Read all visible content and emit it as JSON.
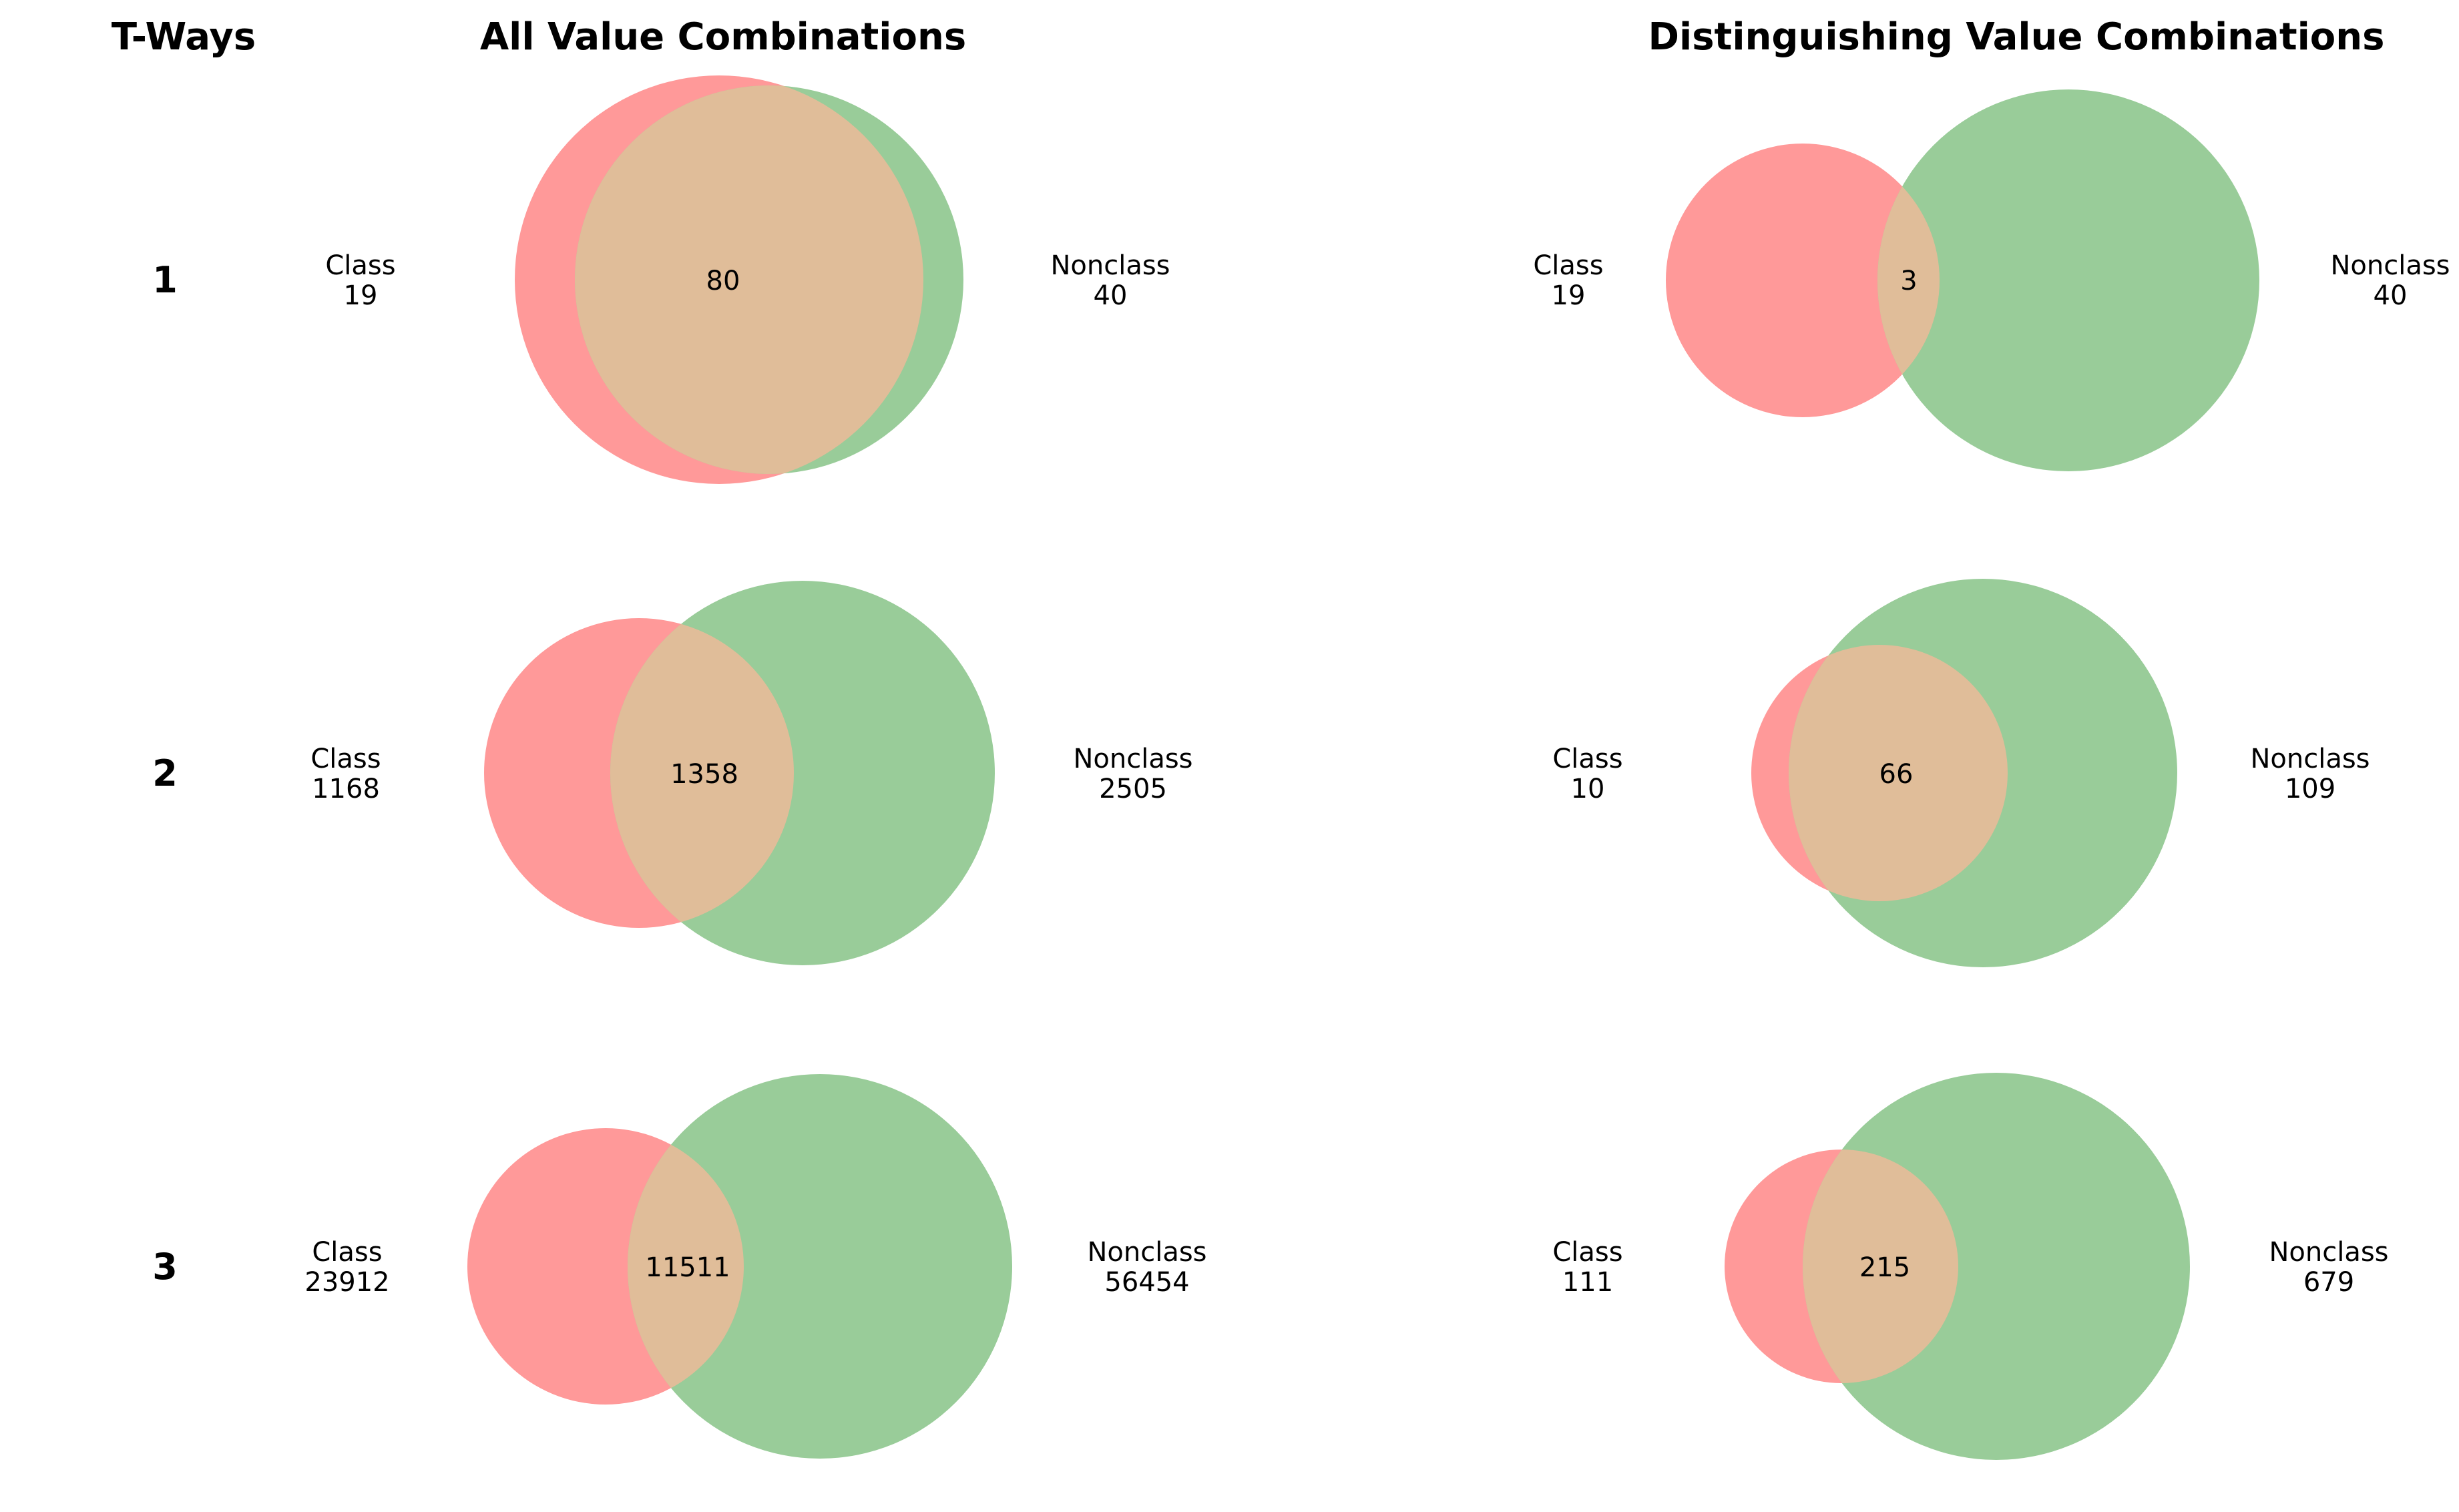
{
  "colors": {
    "class_color": "#ff9999",
    "nonclass_color": "#99cc99",
    "overlap_color": "#e0bd99"
  },
  "headers": {
    "tways": "T-Ways",
    "all": "All Value Combinations",
    "distinguishing": "Distinguishing Value Combinations"
  },
  "chart_data": [
    {
      "type": "venn",
      "title": "All Value Combinations",
      "rows": [
        {
          "tway": "1",
          "class_label": "Class",
          "class_only": 19,
          "nonclass_label": "Nonclass",
          "nonclass_only": 40,
          "intersection": 80
        },
        {
          "tway": "2",
          "class_label": "Class",
          "class_only": 1168,
          "nonclass_label": "Nonclass",
          "nonclass_only": 2505,
          "intersection": 1358
        },
        {
          "tway": "3",
          "class_label": "Class",
          "class_only": 23912,
          "nonclass_label": "Nonclass",
          "nonclass_only": 56454,
          "intersection": 11511
        }
      ]
    },
    {
      "type": "venn",
      "title": "Distinguishing Value Combinations",
      "rows": [
        {
          "tway": "1",
          "class_label": "Class",
          "class_only": 19,
          "nonclass_label": "Nonclass",
          "nonclass_only": 40,
          "intersection": 3
        },
        {
          "tway": "2",
          "class_label": "Class",
          "class_only": 10,
          "nonclass_label": "Nonclass",
          "nonclass_only": 109,
          "intersection": 66
        },
        {
          "tway": "3",
          "class_label": "Class",
          "class_only": 111,
          "nonclass_label": "Nonclass",
          "nonclass_only": 679,
          "intersection": 215
        }
      ]
    }
  ]
}
